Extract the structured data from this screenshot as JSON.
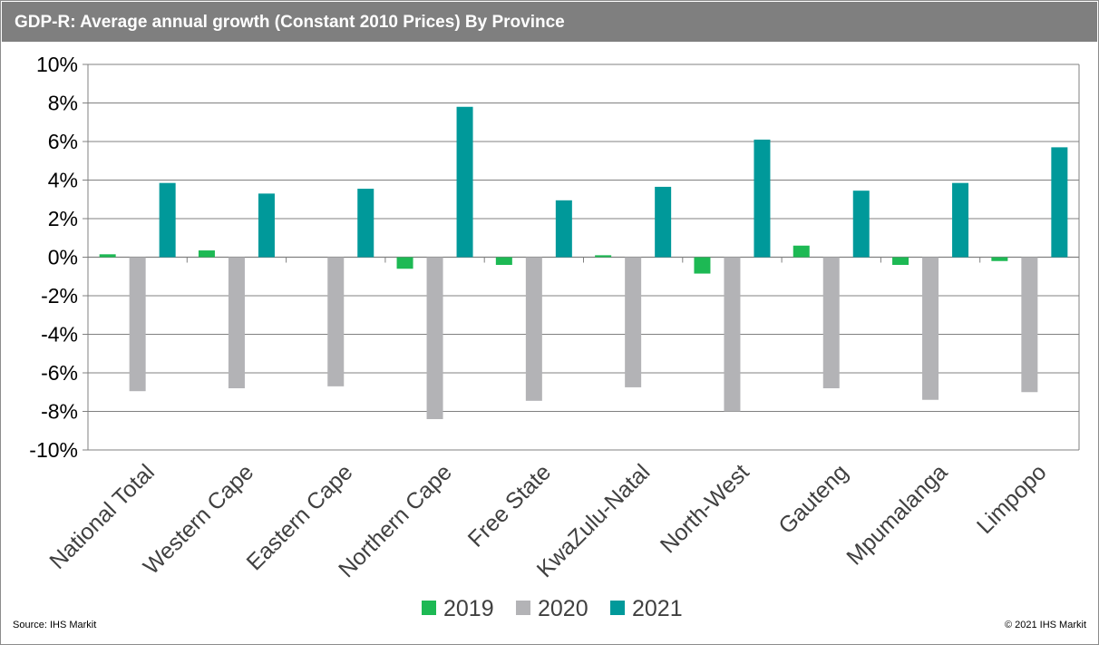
{
  "header": {
    "title": "GDP-R: Average annual growth (Constant 2010 Prices) By Province"
  },
  "footer": {
    "source": "Source: IHS Markit",
    "copyright": "© 2021 IHS Markit"
  },
  "colors": {
    "header_bg": "#7f7f7f",
    "s2019": "#1db954",
    "s2020": "#b3b3b6",
    "s2021": "#00999a",
    "grid": "#808080"
  },
  "chart_data": {
    "type": "bar",
    "title": "GDP-R: Average annual growth (Constant 2010 Prices) By Province",
    "xlabel": "",
    "ylabel": "",
    "ylim": [
      -10,
      10
    ],
    "y_tick_step": 2,
    "y_tick_labels": [
      "10%",
      "8%",
      "6%",
      "4%",
      "2%",
      "0%",
      "-2%",
      "-4%",
      "-6%",
      "-8%",
      "-10%"
    ],
    "grid": true,
    "legend_position": "bottom",
    "categories": [
      "National Total",
      "Western Cape",
      "Eastern Cape",
      "Northern Cape",
      "Free State",
      "KwaZulu-Natal",
      "North-West",
      "Gauteng",
      "Mpumalanga",
      "Limpopo"
    ],
    "series": [
      {
        "name": "2019",
        "color": "#1db954",
        "values": [
          0.15,
          0.35,
          0.0,
          -0.6,
          -0.4,
          0.1,
          -0.85,
          0.6,
          -0.4,
          -0.2
        ]
      },
      {
        "name": "2020",
        "color": "#b3b3b6",
        "values": [
          -6.95,
          -6.8,
          -6.7,
          -8.4,
          -7.45,
          -6.75,
          -8.0,
          -6.8,
          -7.4,
          -7.0
        ]
      },
      {
        "name": "2021",
        "color": "#00999a",
        "values": [
          3.85,
          3.3,
          3.55,
          7.8,
          2.95,
          3.65,
          6.1,
          3.45,
          3.85,
          5.7
        ]
      }
    ]
  }
}
